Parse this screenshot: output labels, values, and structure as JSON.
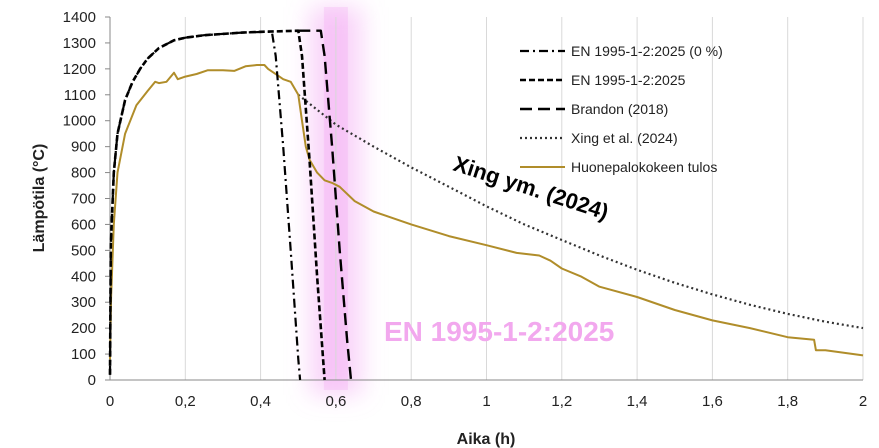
{
  "chart_data": {
    "type": "line",
    "xlabel": "Aika (h)",
    "ylabel": "Lämpötila (°C)",
    "xlim": [
      0,
      2
    ],
    "ylim": [
      0,
      1400
    ],
    "x_ticks": [
      0,
      0.2,
      0.4,
      0.6,
      0.8,
      1,
      1.2,
      1.4,
      1.6,
      1.8,
      2
    ],
    "x_tick_labels": [
      "0",
      "0,2",
      "0,4",
      "0,6",
      "0,8",
      "1",
      "1,2",
      "1,4",
      "1,6",
      "1,8",
      "2"
    ],
    "y_ticks": [
      0,
      100,
      200,
      300,
      400,
      500,
      600,
      700,
      800,
      900,
      1000,
      1100,
      1200,
      1300,
      1400
    ],
    "y_tick_labels": [
      "0",
      "100",
      "200",
      "300",
      "400",
      "500",
      "600",
      "700",
      "800",
      "900",
      "1000",
      "1100",
      "1200",
      "1300",
      "1400"
    ],
    "grid": "vertical",
    "legend_position": "top-right",
    "highlight_band": {
      "x_center": 0.6,
      "color": "#ee82ee"
    },
    "series": [
      {
        "name": "EN 1995-1-2:2025 (0 %)",
        "style": "dashdot",
        "color": "#000000",
        "x": [
          0,
          0.002,
          0.01,
          0.02,
          0.04,
          0.06,
          0.08,
          0.1,
          0.13,
          0.17,
          0.2,
          0.25,
          0.3,
          0.35,
          0.4,
          0.43,
          0.44,
          0.46,
          0.48,
          0.5,
          0.505
        ],
        "y": [
          20,
          520,
          800,
          950,
          1080,
          1150,
          1200,
          1240,
          1280,
          1310,
          1320,
          1330,
          1335,
          1340,
          1342,
          1343,
          1250,
          900,
          500,
          80,
          0
        ]
      },
      {
        "name": "EN 1995-1-2:2025",
        "style": "dashed",
        "color": "#000000",
        "x": [
          0,
          0.002,
          0.01,
          0.02,
          0.04,
          0.06,
          0.08,
          0.1,
          0.13,
          0.17,
          0.2,
          0.25,
          0.3,
          0.35,
          0.4,
          0.45,
          0.5,
          0.51,
          0.53,
          0.55,
          0.57
        ],
        "y": [
          20,
          520,
          800,
          950,
          1080,
          1150,
          1200,
          1240,
          1280,
          1310,
          1320,
          1330,
          1335,
          1340,
          1343,
          1345,
          1347,
          1250,
          850,
          400,
          0
        ]
      },
      {
        "name": "Brandon (2018)",
        "style": "longdash",
        "color": "#000000",
        "x": [
          0.5,
          0.56,
          0.57,
          0.59,
          0.61,
          0.63,
          0.64
        ],
        "y": [
          1347,
          1347,
          1250,
          900,
          500,
          150,
          0
        ]
      },
      {
        "name": "Xing et al. (2024)",
        "style": "dotted",
        "color": "#333333",
        "x": [
          0.5,
          0.6,
          0.7,
          0.8,
          0.9,
          1.0,
          1.1,
          1.2,
          1.3,
          1.4,
          1.5,
          1.6,
          1.7,
          1.8,
          1.9,
          2.0
        ],
        "y": [
          1100,
          985,
          900,
          820,
          745,
          670,
          600,
          540,
          480,
          425,
          375,
          330,
          290,
          255,
          225,
          200
        ]
      },
      {
        "name": "Huonepalokokeen tulos",
        "style": "solid",
        "color": "#b08d2a",
        "x": [
          0,
          0.003,
          0.01,
          0.02,
          0.04,
          0.07,
          0.1,
          0.12,
          0.13,
          0.15,
          0.17,
          0.18,
          0.2,
          0.23,
          0.26,
          0.3,
          0.33,
          0.36,
          0.39,
          0.41,
          0.42,
          0.45,
          0.46,
          0.48,
          0.5,
          0.51,
          0.52,
          0.53,
          0.55,
          0.57,
          0.59,
          0.61,
          0.65,
          0.7,
          0.8,
          0.9,
          1.0,
          1.08,
          1.14,
          1.17,
          1.2,
          1.25,
          1.3,
          1.4,
          1.5,
          1.6,
          1.7,
          1.8,
          1.87,
          1.875,
          1.9,
          2.0
        ],
        "y": [
          80,
          320,
          600,
          800,
          950,
          1060,
          1115,
          1150,
          1145,
          1150,
          1185,
          1160,
          1170,
          1180,
          1195,
          1195,
          1192,
          1210,
          1215,
          1215,
          1200,
          1170,
          1160,
          1150,
          1100,
          1000,
          900,
          850,
          800,
          770,
          760,
          745,
          690,
          650,
          600,
          555,
          520,
          490,
          480,
          460,
          430,
          400,
          360,
          320,
          270,
          230,
          200,
          165,
          155,
          115,
          115,
          95
        ]
      }
    ],
    "annotations": [
      {
        "text": "Xing ym. (2024)",
        "color": "#000000"
      },
      {
        "text": "EN 1995-1-2:2025",
        "color": "#f2a8ee"
      }
    ]
  }
}
